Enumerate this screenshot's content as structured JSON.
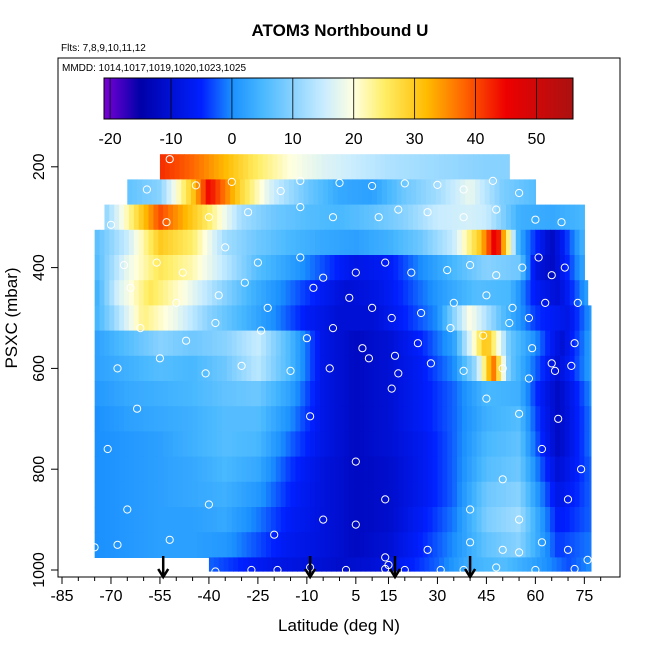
{
  "chart_data": {
    "type": "heatmap",
    "title": "ATOM3 Northbound U",
    "annotations": [
      "Flts: 7,8,9,10,11,12",
      "MMDD: 1014,1017,1019,1020,1023,1025"
    ],
    "xlabel": "Latitude (deg N)",
    "ylabel": "PSXC (mbar)",
    "xlim": [
      -85,
      85
    ],
    "ylim": [
      1000,
      0
    ],
    "x_ticks": [
      "-85",
      "-70",
      "-55",
      "-40",
      "-25",
      "-10",
      "5",
      "15",
      "30",
      "45",
      "60",
      "75"
    ],
    "x_tick_values": [
      -85,
      -70,
      -55,
      -40,
      -25,
      -10,
      5,
      15,
      30,
      45,
      60,
      75
    ],
    "y_ticks": [
      "200",
      "400",
      "600",
      "800",
      "1000"
    ],
    "y_tick_values": [
      200,
      400,
      600,
      800,
      1000
    ],
    "colorbar": {
      "range": [
        -21,
        56
      ],
      "tick_labels": [
        "-20",
        "-10",
        "0",
        "10",
        "20",
        "30",
        "40",
        "50"
      ],
      "tick_values": [
        -20,
        -10,
        0,
        10,
        20,
        30,
        40,
        50
      ],
      "colors": [
        "#7a00d6",
        "#0000a8",
        "#0020ff",
        "#1a90ff",
        "#48b8ff",
        "#c8ecff",
        "#ffffe0",
        "#ffee66",
        "#ffbb00",
        "#ff6600",
        "#ee0000",
        "#aa1111"
      ],
      "color_stops": [
        -21,
        -15,
        -5,
        0,
        5,
        15,
        20,
        25,
        32,
        38,
        45,
        56
      ]
    },
    "profile_arrows_lat": [
      -54,
      -9,
      17,
      40
    ],
    "rows": [
      {
        "p": 200,
        "lat": [
          -55,
          -45,
          -35,
          -25,
          -15,
          -5,
          5,
          15,
          25,
          35,
          45,
          52
        ],
        "u": [
          42,
          38,
          32,
          25,
          20,
          17,
          15,
          13,
          12,
          11,
          10,
          10
        ]
      },
      {
        "p": 250,
        "lat": [
          -65,
          -55,
          -45,
          -40,
          -30,
          -20,
          -10,
          0,
          10,
          20,
          30,
          40,
          50,
          60
        ],
        "u": [
          7,
          10,
          30,
          45,
          28,
          15,
          8,
          3,
          2,
          8,
          12,
          18,
          9,
          6
        ]
      },
      {
        "p": 300,
        "lat": [
          -72,
          -65,
          -55,
          -50,
          -40,
          -30,
          -20,
          -10,
          0,
          10,
          20,
          30,
          40,
          45,
          55,
          65,
          75
        ],
        "u": [
          10,
          22,
          40,
          35,
          25,
          12,
          8,
          6,
          5,
          7,
          10,
          15,
          16,
          15,
          4,
          3,
          5
        ]
      },
      {
        "p": 350,
        "lat": [
          -75,
          -65,
          -55,
          -45,
          -35,
          -25,
          -15,
          -5,
          5,
          15,
          25,
          35,
          43,
          48,
          55,
          65,
          75
        ],
        "u": [
          6,
          15,
          30,
          25,
          12,
          8,
          5,
          3,
          2,
          4,
          8,
          15,
          30,
          48,
          3,
          -12,
          5
        ]
      },
      {
        "p": 400,
        "lat": [
          -75,
          -65,
          -55,
          -45,
          -35,
          -25,
          -15,
          -5,
          5,
          15,
          25,
          35,
          45,
          55,
          60,
          65,
          75
        ],
        "u": [
          5,
          18,
          26,
          22,
          14,
          6,
          2,
          -3,
          -8,
          -6,
          0,
          5,
          10,
          8,
          -8,
          -12,
          3
        ]
      },
      {
        "p": 450,
        "lat": [
          -75,
          -68,
          -58,
          -48,
          -38,
          -28,
          -18,
          -8,
          2,
          12,
          22,
          32,
          42,
          52,
          60,
          67,
          76
        ],
        "u": [
          3,
          16,
          26,
          20,
          12,
          5,
          0,
          -5,
          -10,
          -8,
          -3,
          2,
          6,
          5,
          -6,
          -10,
          2
        ]
      },
      {
        "p": 500,
        "lat": [
          -75,
          -70,
          -60,
          -50,
          -40,
          -30,
          -20,
          -10,
          0,
          10,
          20,
          30,
          40,
          50,
          60,
          70,
          77
        ],
        "u": [
          4,
          10,
          24,
          18,
          10,
          5,
          0,
          -6,
          -10,
          -10,
          -5,
          0,
          20,
          6,
          -4,
          -8,
          1
        ]
      },
      {
        "p": 550,
        "lat": [
          -75,
          -65,
          -55,
          -45,
          -35,
          -25,
          -15,
          -5,
          5,
          15,
          25,
          35,
          45,
          52,
          60,
          68,
          77
        ],
        "u": [
          2,
          6,
          10,
          8,
          10,
          15,
          5,
          -8,
          -12,
          -10,
          -5,
          2,
          32,
          8,
          0,
          -10,
          2
        ]
      },
      {
        "p": 600,
        "lat": [
          -75,
          -65,
          -55,
          -45,
          -35,
          -25,
          -15,
          -5,
          5,
          15,
          25,
          35,
          42,
          47,
          52,
          60,
          67,
          77
        ],
        "u": [
          2,
          4,
          6,
          5,
          8,
          14,
          5,
          -8,
          -12,
          -10,
          -6,
          0,
          12,
          38,
          8,
          -2,
          -10,
          2
        ]
      },
      {
        "p": 650,
        "lat": [
          -75,
          -65,
          -55,
          -45,
          -35,
          -25,
          -15,
          -5,
          5,
          15,
          25,
          35,
          45,
          55,
          60,
          67,
          77
        ],
        "u": [
          1,
          3,
          4,
          5,
          7,
          8,
          2,
          -8,
          -12,
          -10,
          -6,
          -2,
          5,
          4,
          -4,
          -12,
          0
        ]
      },
      {
        "p": 700,
        "lat": [
          -75,
          -65,
          -55,
          -45,
          -35,
          -25,
          -15,
          -5,
          5,
          15,
          25,
          35,
          45,
          55,
          60,
          67,
          77
        ],
        "u": [
          0,
          2,
          3,
          4,
          6,
          6,
          0,
          -8,
          -12,
          -10,
          -6,
          -2,
          4,
          6,
          -3,
          -12,
          -1
        ]
      },
      {
        "p": 750,
        "lat": [
          -75,
          -65,
          -55,
          -45,
          -35,
          -25,
          -15,
          -5,
          5,
          15,
          25,
          35,
          45,
          55,
          60,
          67,
          77
        ],
        "u": [
          0,
          1,
          2,
          4,
          6,
          5,
          -2,
          -8,
          -12,
          -10,
          -7,
          -2,
          5,
          7,
          -2,
          -12,
          -1
        ]
      },
      {
        "p": 800,
        "lat": [
          -75,
          -65,
          -55,
          -45,
          -35,
          -25,
          -15,
          -5,
          5,
          15,
          25,
          35,
          45,
          55,
          60,
          67,
          77
        ],
        "u": [
          0,
          1,
          2,
          3,
          5,
          3,
          -4,
          -9,
          -12,
          -11,
          -7,
          -2,
          6,
          8,
          0,
          -10,
          -2
        ]
      },
      {
        "p": 850,
        "lat": [
          -75,
          -65,
          -55,
          -45,
          -35,
          -25,
          -15,
          -5,
          5,
          15,
          25,
          35,
          45,
          55,
          60,
          67,
          77
        ],
        "u": [
          0,
          1,
          2,
          3,
          4,
          1,
          -5,
          -9,
          -12,
          -11,
          -7,
          -2,
          8,
          10,
          2,
          -8,
          -2
        ]
      },
      {
        "p": 900,
        "lat": [
          -75,
          -65,
          -55,
          -45,
          -35,
          -25,
          -15,
          -5,
          5,
          15,
          25,
          35,
          45,
          55,
          60,
          67,
          77
        ],
        "u": [
          0,
          1,
          2,
          2,
          3,
          -1,
          -6,
          -9,
          -12,
          -11,
          -6,
          -1,
          9,
          12,
          4,
          -6,
          -2
        ]
      },
      {
        "p": 950,
        "lat": [
          -75,
          -65,
          -55,
          -45,
          -35,
          -25,
          -15,
          -5,
          5,
          15,
          25,
          35,
          45,
          55,
          60,
          67,
          77
        ],
        "u": [
          0,
          1,
          2,
          2,
          1,
          -3,
          -7,
          -9,
          -12,
          -10,
          -5,
          0,
          7,
          10,
          4,
          -4,
          -1
        ]
      },
      {
        "p": 1000,
        "lat": [
          -40,
          -30,
          -20,
          -10,
          0,
          10,
          20,
          30,
          40,
          50,
          60,
          70,
          77
        ],
        "u": [
          -2,
          -5,
          -8,
          -9,
          -11,
          -10,
          -6,
          -2,
          4,
          6,
          2,
          -3,
          0
        ]
      }
    ],
    "sample_points": [
      [
        -52,
        185
      ],
      [
        -59,
        245
      ],
      [
        -44,
        237
      ],
      [
        -33,
        230
      ],
      [
        -18,
        248
      ],
      [
        -12,
        228
      ],
      [
        0,
        232
      ],
      [
        10,
        238
      ],
      [
        20,
        233
      ],
      [
        30,
        236
      ],
      [
        38,
        245
      ],
      [
        47,
        228
      ],
      [
        55,
        252
      ],
      [
        -70,
        315
      ],
      [
        -53,
        310
      ],
      [
        -40,
        300
      ],
      [
        -28,
        290
      ],
      [
        -12,
        280
      ],
      [
        -2,
        300
      ],
      [
        12,
        300
      ],
      [
        18,
        285
      ],
      [
        27,
        290
      ],
      [
        38,
        300
      ],
      [
        48,
        285
      ],
      [
        60,
        305
      ],
      [
        68,
        310
      ],
      [
        -66,
        395
      ],
      [
        -56,
        390
      ],
      [
        -48,
        410
      ],
      [
        -35,
        360
      ],
      [
        -25,
        390
      ],
      [
        -12,
        380
      ],
      [
        -5,
        420
      ],
      [
        5,
        410
      ],
      [
        14,
        390
      ],
      [
        22,
        410
      ],
      [
        33,
        405
      ],
      [
        40,
        395
      ],
      [
        48,
        415
      ],
      [
        56,
        400
      ],
      [
        61,
        380
      ],
      [
        65,
        415
      ],
      [
        69,
        400
      ],
      [
        -64,
        440
      ],
      [
        -50,
        470
      ],
      [
        -37,
        455
      ],
      [
        -29,
        430
      ],
      [
        -22,
        480
      ],
      [
        -8,
        440
      ],
      [
        3,
        460
      ],
      [
        10,
        480
      ],
      [
        16,
        500
      ],
      [
        25,
        490
      ],
      [
        35,
        470
      ],
      [
        45,
        455
      ],
      [
        53,
        480
      ],
      [
        58,
        500
      ],
      [
        63,
        470
      ],
      [
        73,
        470
      ],
      [
        -61,
        520
      ],
      [
        -47,
        545
      ],
      [
        -38,
        510
      ],
      [
        -24,
        525
      ],
      [
        -10,
        540
      ],
      [
        -2,
        520
      ],
      [
        7,
        560
      ],
      [
        17,
        575
      ],
      [
        24,
        550
      ],
      [
        34,
        520
      ],
      [
        44,
        535
      ],
      [
        52,
        510
      ],
      [
        59,
        560
      ],
      [
        65,
        590
      ],
      [
        72,
        550
      ],
      [
        -68,
        600
      ],
      [
        -55,
        580
      ],
      [
        -41,
        610
      ],
      [
        -30,
        595
      ],
      [
        -15,
        605
      ],
      [
        -3,
        600
      ],
      [
        9,
        580
      ],
      [
        18,
        610
      ],
      [
        28,
        590
      ],
      [
        38,
        605
      ],
      [
        50,
        600
      ],
      [
        58,
        620
      ],
      [
        66,
        605
      ],
      [
        71,
        595
      ],
      [
        -62,
        680
      ],
      [
        -9,
        695
      ],
      [
        16,
        640
      ],
      [
        45,
        660
      ],
      [
        55,
        690
      ],
      [
        67,
        700
      ],
      [
        -71,
        760
      ],
      [
        5,
        785
      ],
      [
        50,
        820
      ],
      [
        62,
        760
      ],
      [
        74,
        800
      ],
      [
        -65,
        880
      ],
      [
        -40,
        870
      ],
      [
        -5,
        900
      ],
      [
        14,
        860
      ],
      [
        40,
        880
      ],
      [
        55,
        900
      ],
      [
        70,
        860
      ],
      [
        -75,
        955
      ],
      [
        -68,
        950
      ],
      [
        -52,
        940
      ],
      [
        -20,
        930
      ],
      [
        5,
        910
      ],
      [
        14,
        975
      ],
      [
        15,
        990
      ],
      [
        27,
        960
      ],
      [
        40,
        945
      ],
      [
        50,
        960
      ],
      [
        55,
        965
      ],
      [
        62,
        945
      ],
      [
        70,
        960
      ],
      [
        76,
        980
      ],
      [
        -38,
        1003
      ],
      [
        -27,
        1000
      ],
      [
        -19,
        1000
      ],
      [
        -9,
        995
      ],
      [
        2,
        1000
      ],
      [
        14,
        998
      ],
      [
        20,
        1000
      ],
      [
        31,
        1000
      ],
      [
        38,
        1000
      ],
      [
        48,
        995
      ],
      [
        60,
        1000
      ],
      [
        72,
        998
      ]
    ]
  }
}
